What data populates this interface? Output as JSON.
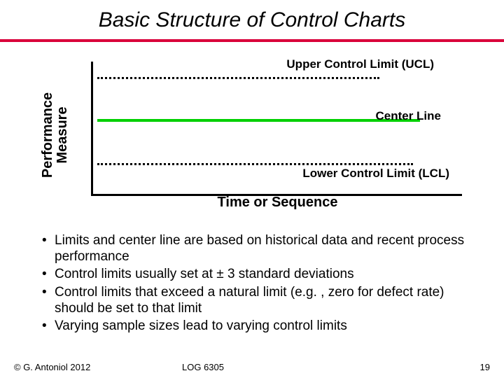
{
  "title": "Basic Structure of Control Charts",
  "rule_color": "#d9003a",
  "chart": {
    "y_label_line1": "Performance",
    "y_label_line2": "Measure",
    "x_label": "Time or Sequence",
    "ucl_label": "Upper Control Limit (UCL)",
    "center_label": "Center Line",
    "lcl_label": "Lower Control Limit (LCL)",
    "ucl_color": "#000000",
    "lcl_color": "#000000",
    "center_color": "#00d000",
    "axis_color": "#000000",
    "label_fontsize": 17,
    "axis_label_fontsize": 20
  },
  "bullets": {
    "b0": "Limits and center line are based on historical data and recent process performance",
    "b1": "Control limits usually set at ± 3 standard deviations",
    "b2": "Control limits that exceed a natural limit (e.g. , zero for defect rate) should be set to that limit",
    "b3": "Varying sample sizes lead to varying control limits"
  },
  "footer": {
    "copyright": "© G. Antoniol 2012",
    "course": "LOG 6305",
    "page": "19"
  }
}
